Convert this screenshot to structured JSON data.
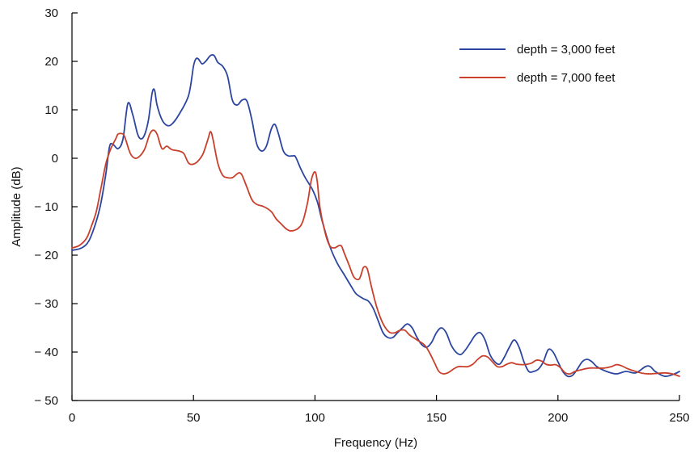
{
  "chart_data": {
    "type": "line",
    "title": "",
    "xlabel": "Frequency (Hz)",
    "ylabel": "Amplitude (dB)",
    "xlim": [
      0,
      250
    ],
    "ylim": [
      -50,
      30
    ],
    "xticks": [
      0,
      50,
      100,
      150,
      200,
      250
    ],
    "xtick_labels": [
      "0",
      "50",
      "100",
      "150",
      "200",
      "250"
    ],
    "yticks": [
      30,
      20,
      10,
      0,
      -10,
      -20,
      -30,
      -40,
      -50
    ],
    "ytick_labels": [
      "30",
      "20",
      "10",
      "0",
      "− 10",
      "− 20",
      "− 30",
      "− 40",
      "− 50"
    ],
    "grid": false,
    "legend_position": "top-right",
    "series": [
      {
        "name": "depth = 3,000 feet",
        "color": "#2b45a0",
        "points": [
          [
            0,
            -19
          ],
          [
            4,
            -18.5
          ],
          [
            7,
            -17
          ],
          [
            10,
            -13
          ],
          [
            12,
            -9
          ],
          [
            14,
            -3
          ],
          [
            15.5,
            2.5
          ],
          [
            17,
            2.8
          ],
          [
            19,
            2
          ],
          [
            21,
            4
          ],
          [
            23,
            11.3
          ],
          [
            25,
            9
          ],
          [
            27,
            5
          ],
          [
            28.5,
            4
          ],
          [
            30,
            5
          ],
          [
            31.5,
            8
          ],
          [
            33,
            13.5
          ],
          [
            34,
            14
          ],
          [
            35,
            11
          ],
          [
            37,
            8
          ],
          [
            39,
            6.8
          ],
          [
            41,
            7
          ],
          [
            44,
            9
          ],
          [
            48,
            13
          ],
          [
            50,
            19
          ],
          [
            51,
            20.5
          ],
          [
            52,
            20.5
          ],
          [
            53.5,
            19.5
          ],
          [
            55,
            20
          ],
          [
            57,
            21.2
          ],
          [
            58.5,
            21.2
          ],
          [
            60,
            19.8
          ],
          [
            62,
            19
          ],
          [
            64,
            17
          ],
          [
            66,
            12
          ],
          [
            68,
            11
          ],
          [
            70,
            12
          ],
          [
            72,
            11.8
          ],
          [
            74,
            8
          ],
          [
            76,
            3
          ],
          [
            78,
            1.5
          ],
          [
            80,
            2.5
          ],
          [
            82,
            6
          ],
          [
            83.5,
            7
          ],
          [
            85,
            5
          ],
          [
            87,
            1.5
          ],
          [
            89,
            0.5
          ],
          [
            91,
            0.5
          ],
          [
            92,
            0.3
          ],
          [
            94,
            -2
          ],
          [
            96,
            -4
          ],
          [
            99,
            -6.5
          ],
          [
            101,
            -9
          ],
          [
            103,
            -13
          ],
          [
            106,
            -18
          ],
          [
            109,
            -21.5
          ],
          [
            112,
            -24
          ],
          [
            115,
            -26.5
          ],
          [
            117,
            -28
          ],
          [
            120,
            -29
          ],
          [
            122,
            -29.5
          ],
          [
            124,
            -31
          ],
          [
            126,
            -33.5
          ],
          [
            128,
            -36
          ],
          [
            130,
            -37
          ],
          [
            132,
            -37
          ],
          [
            134,
            -36
          ],
          [
            136,
            -35
          ],
          [
            138,
            -34.2
          ],
          [
            140,
            -35
          ],
          [
            142,
            -37
          ],
          [
            144,
            -38.5
          ],
          [
            146,
            -39
          ],
          [
            148,
            -38
          ],
          [
            150,
            -36
          ],
          [
            152,
            -35
          ],
          [
            154,
            -36
          ],
          [
            156,
            -38.5
          ],
          [
            158,
            -40
          ],
          [
            160,
            -40.5
          ],
          [
            162,
            -39.5
          ],
          [
            164,
            -38
          ],
          [
            166,
            -36.5
          ],
          [
            168,
            -36
          ],
          [
            170,
            -37.5
          ],
          [
            172,
            -40.5
          ],
          [
            174,
            -42
          ],
          [
            176,
            -42.5
          ],
          [
            178,
            -41
          ],
          [
            180,
            -39
          ],
          [
            182,
            -37.5
          ],
          [
            184,
            -39
          ],
          [
            186,
            -42
          ],
          [
            188,
            -44
          ],
          [
            190,
            -44
          ],
          [
            192,
            -43.5
          ],
          [
            194,
            -42
          ],
          [
            196,
            -39.5
          ],
          [
            198,
            -40
          ],
          [
            200,
            -42
          ],
          [
            202,
            -44
          ],
          [
            204,
            -45
          ],
          [
            206,
            -44.8
          ],
          [
            208,
            -43.5
          ],
          [
            210,
            -42
          ],
          [
            212,
            -41.5
          ],
          [
            214,
            -42
          ],
          [
            216,
            -43
          ],
          [
            220,
            -44
          ],
          [
            224,
            -44.5
          ],
          [
            228,
            -44
          ],
          [
            232,
            -44.3
          ],
          [
            236,
            -43
          ],
          [
            238,
            -43
          ],
          [
            240,
            -44
          ],
          [
            244,
            -45
          ],
          [
            248,
            -44.5
          ],
          [
            250,
            -44
          ]
        ]
      },
      {
        "name": "depth = 7,000 feet",
        "color": "#c8402b",
        "points": [
          [
            0,
            -18.5
          ],
          [
            3,
            -18
          ],
          [
            6,
            -16.5
          ],
          [
            8,
            -14
          ],
          [
            10,
            -11
          ],
          [
            12,
            -6
          ],
          [
            14,
            -1
          ],
          [
            16,
            2
          ],
          [
            18,
            4
          ],
          [
            19,
            5
          ],
          [
            21,
            5
          ],
          [
            22,
            4
          ],
          [
            24,
            1
          ],
          [
            26,
            0
          ],
          [
            28,
            0.5
          ],
          [
            30,
            2
          ],
          [
            32,
            5
          ],
          [
            33.5,
            5.8
          ],
          [
            35,
            5
          ],
          [
            37,
            2
          ],
          [
            39,
            2.5
          ],
          [
            41,
            1.8
          ],
          [
            44,
            1.5
          ],
          [
            46,
            1
          ],
          [
            48,
            -1
          ],
          [
            50,
            -1.2
          ],
          [
            52,
            -0.5
          ],
          [
            54,
            1
          ],
          [
            56,
            4
          ],
          [
            57,
            5.5
          ],
          [
            58,
            4
          ],
          [
            60,
            -1
          ],
          [
            62,
            -3.5
          ],
          [
            64,
            -4
          ],
          [
            66,
            -4
          ],
          [
            68,
            -3.2
          ],
          [
            69,
            -3
          ],
          [
            70,
            -3.5
          ],
          [
            72,
            -6
          ],
          [
            74,
            -8.5
          ],
          [
            76,
            -9.5
          ],
          [
            79,
            -10
          ],
          [
            82,
            -11
          ],
          [
            84,
            -12.5
          ],
          [
            86,
            -13.5
          ],
          [
            88,
            -14.5
          ],
          [
            90,
            -15
          ],
          [
            93,
            -14.5
          ],
          [
            95,
            -13
          ],
          [
            97,
            -9
          ],
          [
            98.5,
            -4.5
          ],
          [
            100,
            -2.8
          ],
          [
            101,
            -5
          ],
          [
            102,
            -10
          ],
          [
            104,
            -15
          ],
          [
            106,
            -18
          ],
          [
            108,
            -18.5
          ],
          [
            110,
            -18
          ],
          [
            111,
            -18.2
          ],
          [
            112,
            -19.5
          ],
          [
            114,
            -22
          ],
          [
            116,
            -24.5
          ],
          [
            118,
            -25
          ],
          [
            119,
            -24
          ],
          [
            120,
            -22.5
          ],
          [
            121.5,
            -22.8
          ],
          [
            123,
            -26
          ],
          [
            125,
            -30
          ],
          [
            127,
            -33
          ],
          [
            129,
            -35
          ],
          [
            131,
            -36
          ],
          [
            133,
            -36
          ],
          [
            135,
            -35.5
          ],
          [
            137,
            -35.5
          ],
          [
            139,
            -36.5
          ],
          [
            142,
            -37.5
          ],
          [
            145,
            -38.5
          ],
          [
            147,
            -40
          ],
          [
            149,
            -42
          ],
          [
            151,
            -44
          ],
          [
            153,
            -44.5
          ],
          [
            155,
            -44.2
          ],
          [
            157,
            -43.5
          ],
          [
            159,
            -43
          ],
          [
            161,
            -43
          ],
          [
            163,
            -43
          ],
          [
            165,
            -42.5
          ],
          [
            167,
            -41.5
          ],
          [
            169,
            -40.8
          ],
          [
            171,
            -41
          ],
          [
            173,
            -42
          ],
          [
            175,
            -43
          ],
          [
            177,
            -43
          ],
          [
            179,
            -42.5
          ],
          [
            181,
            -42.2
          ],
          [
            183,
            -42.5
          ],
          [
            186,
            -42.6
          ],
          [
            189,
            -42.3
          ],
          [
            191,
            -41.7
          ],
          [
            193,
            -41.8
          ],
          [
            195,
            -42.5
          ],
          [
            197,
            -42.7
          ],
          [
            199,
            -42.6
          ],
          [
            201,
            -43.2
          ],
          [
            203,
            -44.3
          ],
          [
            205,
            -44.5
          ],
          [
            207,
            -44
          ],
          [
            210,
            -43.6
          ],
          [
            213,
            -43.3
          ],
          [
            216,
            -43.3
          ],
          [
            219,
            -43.3
          ],
          [
            222,
            -43
          ],
          [
            224,
            -42.6
          ],
          [
            226,
            -42.8
          ],
          [
            229,
            -43.5
          ],
          [
            232,
            -44
          ],
          [
            235,
            -44.4
          ],
          [
            238,
            -44.5
          ],
          [
            241,
            -44.4
          ],
          [
            244,
            -44.3
          ],
          [
            247,
            -44.5
          ],
          [
            250,
            -45
          ]
        ]
      }
    ]
  }
}
